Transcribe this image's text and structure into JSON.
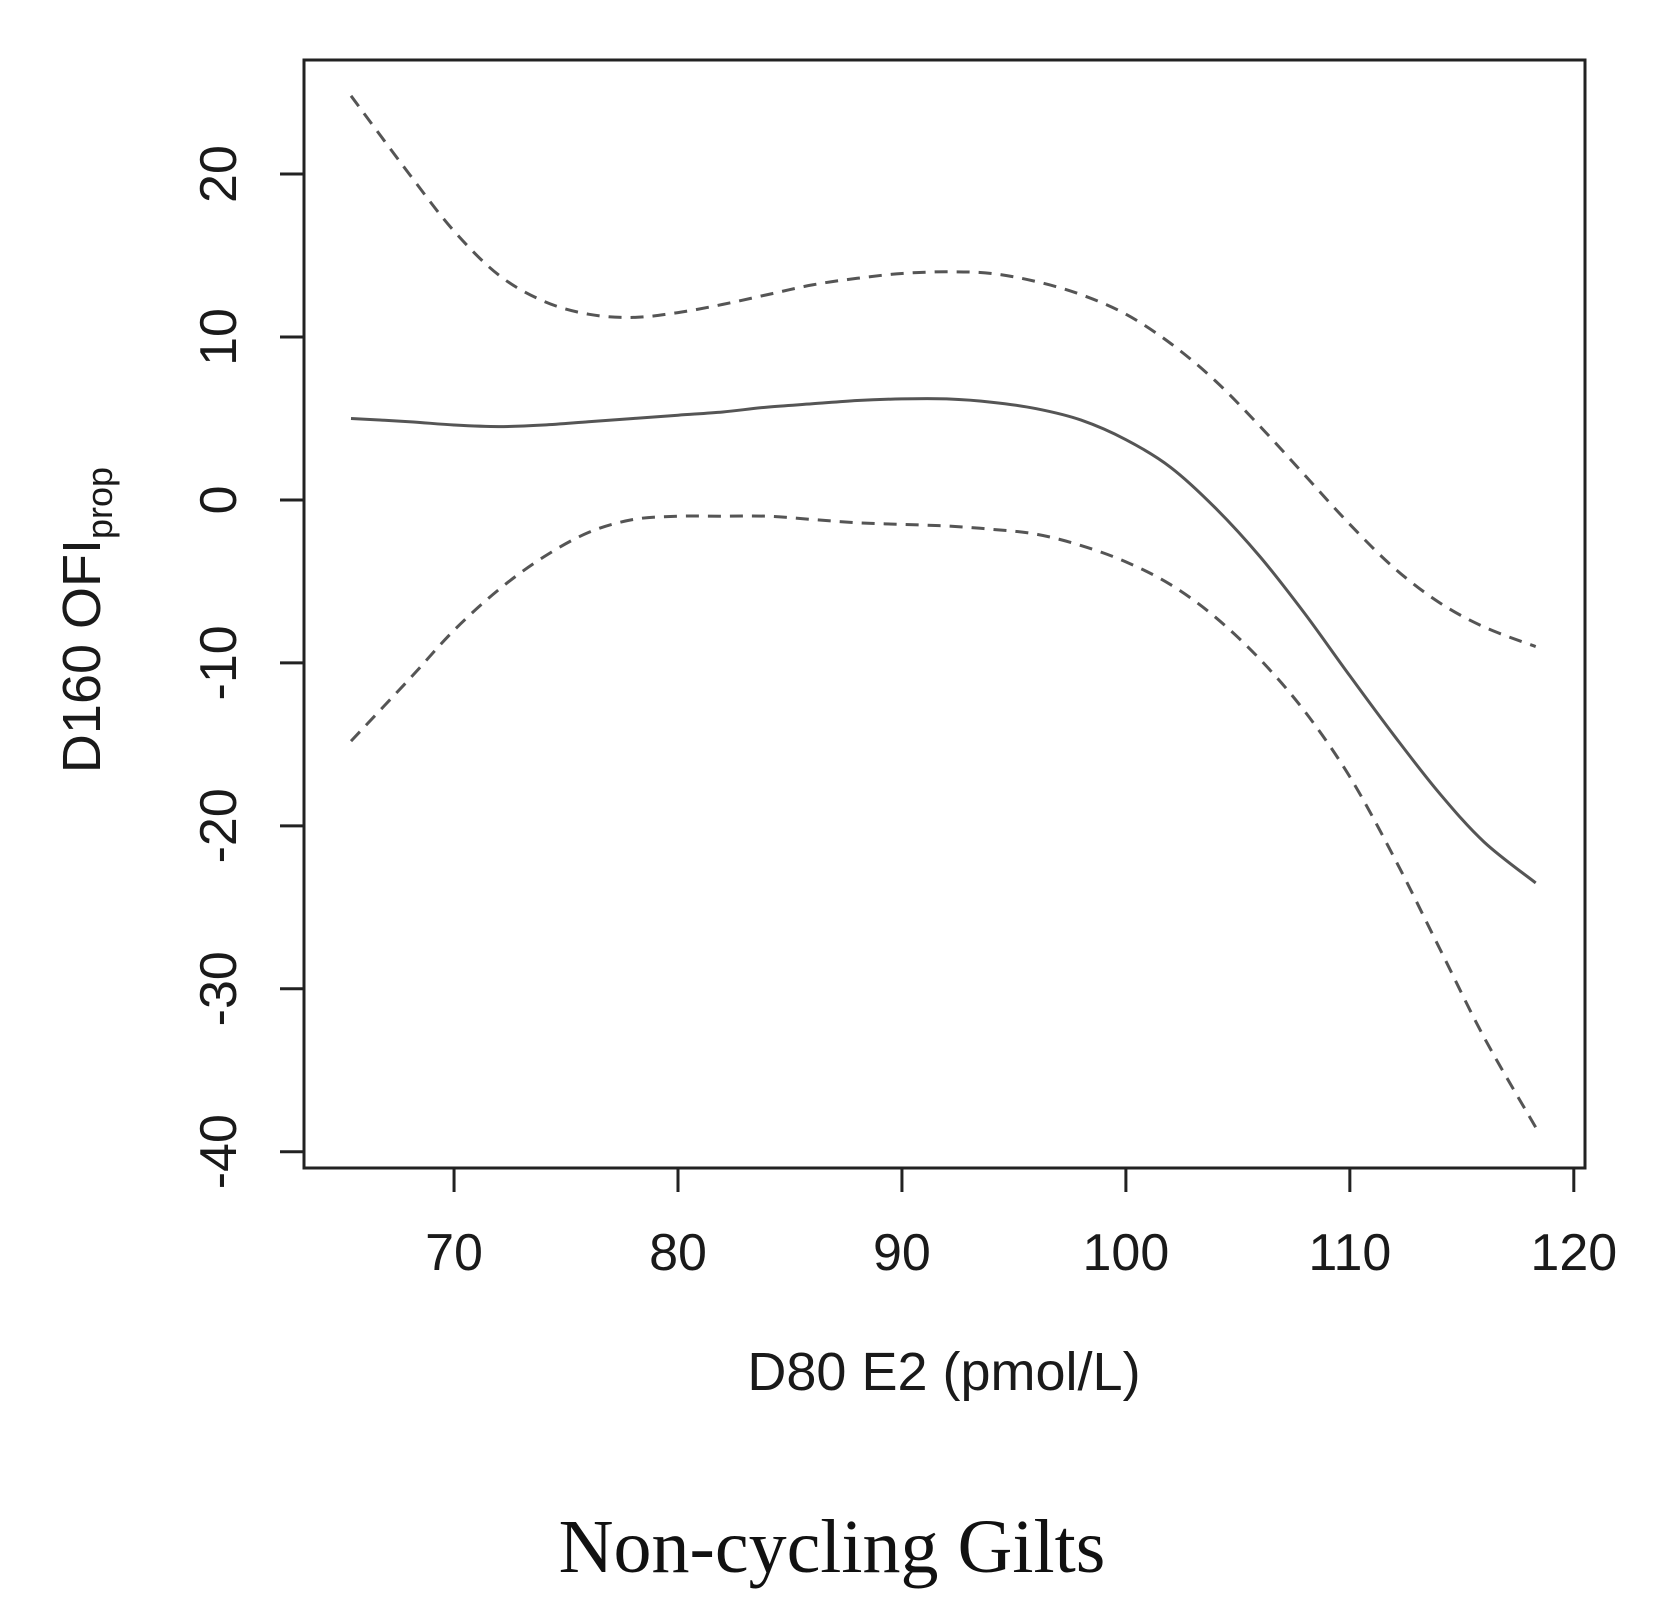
{
  "caption": "Non-cycling Gilts",
  "chart_data": {
    "type": "line",
    "xlabel": "D80 E2 (pmol/L)",
    "ylabel_main": "D160 OFI",
    "ylabel_sub": "prop",
    "xlim": [
      63.3,
      120.5
    ],
    "ylim": [
      -41,
      27
    ],
    "xticks": [
      70,
      80,
      90,
      100,
      110,
      120
    ],
    "yticks": [
      20,
      10,
      0,
      -10,
      -20,
      -30,
      -40
    ],
    "grid": false,
    "colors": {
      "fit": "#555555",
      "ci": "#555555",
      "axis": "#222222"
    },
    "series": [
      {
        "role": "fit",
        "style": "solid",
        "x": [
          65.4,
          68,
          70,
          72,
          74,
          76,
          78,
          80,
          82,
          84,
          86,
          88,
          90,
          92,
          94,
          96,
          98,
          100,
          102,
          104,
          106,
          108,
          110,
          112,
          114,
          116,
          118.3
        ],
        "y": [
          5.0,
          4.8,
          4.6,
          4.5,
          4.6,
          4.8,
          5.0,
          5.2,
          5.4,
          5.7,
          5.9,
          6.1,
          6.2,
          6.2,
          6.0,
          5.6,
          4.9,
          3.7,
          2.0,
          -0.5,
          -3.5,
          -7.0,
          -10.8,
          -14.5,
          -18.0,
          -21.0,
          -23.5
        ]
      },
      {
        "role": "upper",
        "style": "dashed",
        "x": [
          65.4,
          68,
          70,
          72,
          74,
          76,
          78,
          80,
          82,
          84,
          86,
          88,
          90,
          92,
          94,
          96,
          98,
          100,
          102,
          104,
          106,
          108,
          110,
          112,
          114,
          116,
          118.3
        ],
        "y": [
          24.8,
          20.0,
          16.5,
          13.8,
          12.2,
          11.4,
          11.2,
          11.5,
          12.0,
          12.6,
          13.2,
          13.6,
          13.9,
          14.0,
          13.9,
          13.4,
          12.6,
          11.4,
          9.6,
          7.3,
          4.5,
          1.5,
          -1.5,
          -4.2,
          -6.3,
          -7.8,
          -9.0
        ]
      },
      {
        "role": "lower",
        "style": "dashed",
        "x": [
          65.4,
          68,
          70,
          72,
          74,
          76,
          78,
          80,
          82,
          84,
          86,
          88,
          90,
          92,
          94,
          96,
          98,
          100,
          102,
          104,
          106,
          108,
          110,
          112,
          114,
          116,
          118.3
        ],
        "y": [
          -14.8,
          -11.0,
          -8.0,
          -5.5,
          -3.5,
          -2.0,
          -1.2,
          -1.0,
          -1.0,
          -1.0,
          -1.2,
          -1.4,
          -1.5,
          -1.6,
          -1.8,
          -2.1,
          -2.8,
          -3.8,
          -5.2,
          -7.2,
          -9.8,
          -13.0,
          -17.0,
          -22.0,
          -27.5,
          -33.0,
          -38.5
        ]
      }
    ]
  }
}
